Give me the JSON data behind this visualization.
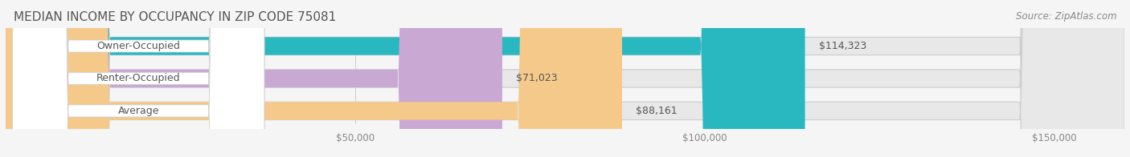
{
  "title": "MEDIAN INCOME BY OCCUPANCY IN ZIP CODE 75081",
  "source": "Source: ZipAtlas.com",
  "categories": [
    "Owner-Occupied",
    "Renter-Occupied",
    "Average"
  ],
  "values": [
    114323,
    71023,
    88161
  ],
  "labels": [
    "$114,323",
    "$71,023",
    "$88,161"
  ],
  "bar_colors": [
    "#2ab8c0",
    "#c9a8d4",
    "#f5c98a"
  ],
  "bar_bg_color": "#e8e8e8",
  "x_ticks": [
    0,
    50000,
    100000,
    150000
  ],
  "x_tick_labels": [
    "$50,000",
    "$100,000",
    "$150,000"
  ],
  "x_max": 160000,
  "title_fontsize": 11,
  "source_fontsize": 8.5,
  "label_fontsize": 9,
  "bar_label_fontsize": 9,
  "background_color": "#f5f5f5"
}
